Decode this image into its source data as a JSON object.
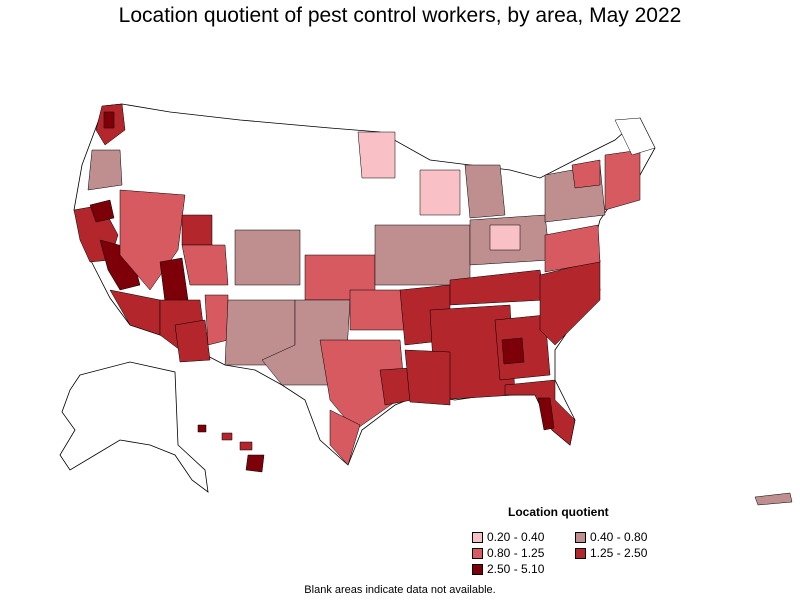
{
  "title": "Location quotient of pest control workers, by area, May 2022",
  "legend": {
    "title": "Location quotient",
    "items": [
      {
        "label": "0.20 - 0.40",
        "color": "#f9c0c6"
      },
      {
        "label": "0.40 - 0.80",
        "color": "#bf8f8f"
      },
      {
        "label": "0.80 - 1.25",
        "color": "#d65a5f"
      },
      {
        "label": "1.25 - 2.50",
        "color": "#b3262c"
      },
      {
        "label": "2.50 - 5.10",
        "color": "#7d0009"
      }
    ]
  },
  "footnote": "Blank areas indicate data not available."
}
